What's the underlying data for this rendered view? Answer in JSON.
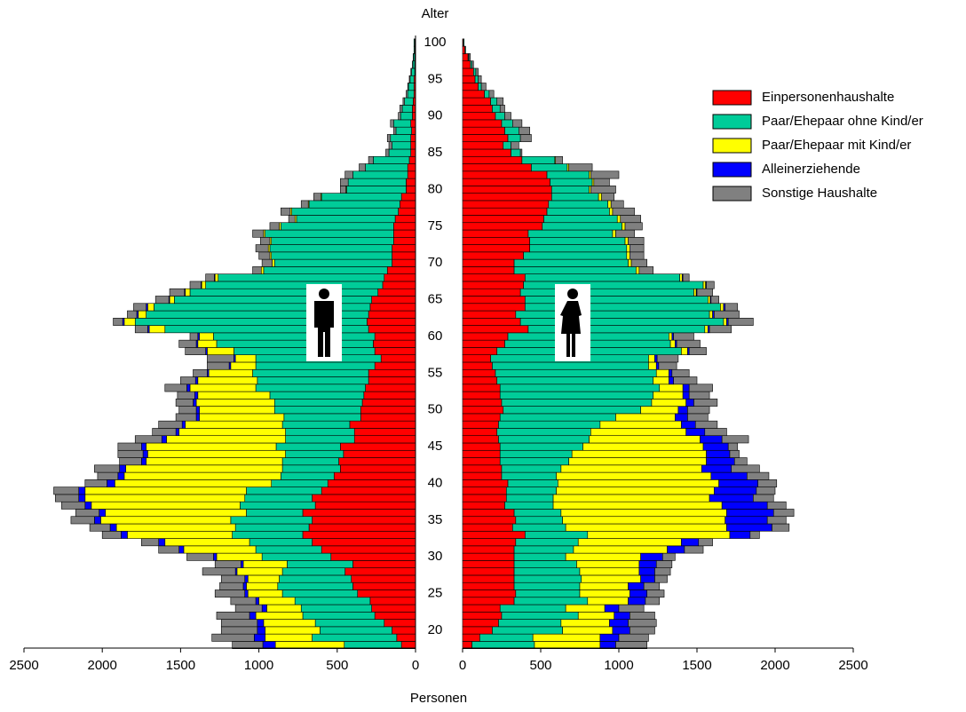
{
  "chart_data": {
    "type": "pyramid",
    "y_label": "Alter",
    "x_label": "Personen",
    "categories": [
      null,
      null,
      20,
      null,
      null,
      null,
      null,
      25,
      null,
      null,
      null,
      null,
      30,
      null,
      null,
      null,
      null,
      35,
      null,
      null,
      null,
      null,
      40,
      null,
      null,
      null,
      null,
      45,
      null,
      null,
      null,
      null,
      50,
      null,
      null,
      null,
      null,
      55,
      null,
      null,
      null,
      null,
      60,
      null,
      null,
      null,
      null,
      65,
      null,
      null,
      null,
      null,
      70,
      null,
      null,
      null,
      null,
      75,
      null,
      null,
      null,
      null,
      80,
      null,
      null,
      null,
      null,
      85,
      null,
      null,
      null,
      null,
      90,
      null,
      null,
      null,
      null,
      95,
      null,
      null,
      null,
      null,
      100
    ],
    "xlim": [
      0,
      2500
    ],
    "xticks": [
      0,
      500,
      1000,
      1500,
      2000,
      2500
    ],
    "series": [
      {
        "name": "Einpersonenhaushalte",
        "color": "#ff0000",
        "male": [
          90,
          120,
          150,
          200,
          260,
          280,
          290,
          370,
          400,
          410,
          450,
          400,
          540,
          600,
          660,
          720,
          680,
          660,
          720,
          640,
          660,
          600,
          560,
          520,
          480,
          490,
          460,
          480,
          390,
          390,
          420,
          350,
          350,
          340,
          330,
          320,
          300,
          300,
          260,
          220,
          260,
          270,
          260,
          300,
          310,
          300,
          290,
          280,
          240,
          210,
          200,
          180,
          150,
          150,
          150,
          140,
          140,
          140,
          130,
          110,
          100,
          90,
          60,
          60,
          50,
          50,
          40,
          30,
          30,
          30,
          25,
          30,
          20,
          20,
          15,
          10,
          10,
          10,
          5,
          5,
          5,
          5,
          5
        ],
        "female": [
          60,
          110,
          190,
          230,
          250,
          240,
          330,
          340,
          330,
          330,
          330,
          330,
          330,
          330,
          340,
          400,
          320,
          340,
          330,
          270,
          280,
          280,
          290,
          250,
          250,
          240,
          240,
          240,
          230,
          220,
          230,
          240,
          260,
          250,
          240,
          240,
          220,
          210,
          190,
          180,
          220,
          270,
          290,
          420,
          370,
          340,
          400,
          400,
          370,
          390,
          400,
          330,
          330,
          390,
          430,
          430,
          420,
          510,
          520,
          540,
          550,
          570,
          570,
          560,
          540,
          440,
          380,
          310,
          260,
          290,
          270,
          250,
          210,
          190,
          180,
          140,
          100,
          80,
          70,
          50,
          35,
          15,
          5
        ]
      },
      {
        "name": "Paar/Ehepaar ohne Kind/er",
        "color": "#00cc99",
        "male": [
          365,
          540,
          460,
          440,
          460,
          450,
          480,
          480,
          480,
          460,
          400,
          420,
          440,
          420,
          400,
          450,
          470,
          520,
          360,
          480,
          430,
          480,
          360,
          340,
          370,
          360,
          370,
          410,
          440,
          440,
          430,
          490,
          550,
          560,
          600,
          700,
          710,
          740,
          760,
          800,
          900,
          1000,
          1030,
          1300,
          1480,
          1420,
          1380,
          1260,
          1200,
          1130,
          1060,
          790,
          750,
          770,
          780,
          780,
          820,
          720,
          630,
          680,
          580,
          510,
          380,
          370,
          350,
          270,
          230,
          140,
          120,
          130,
          100,
          110,
          75,
          65,
          55,
          40,
          35,
          25,
          20,
          12,
          8,
          5,
          5
        ],
        "female": [
          400,
          340,
          450,
          400,
          490,
          420,
          470,
          410,
          420,
          430,
          420,
          400,
          330,
          380,
          400,
          400,
          340,
          300,
          300,
          310,
          300,
          320,
          320,
          350,
          380,
          440,
          460,
          530,
          580,
          600,
          650,
          740,
          880,
          960,
          980,
          1020,
          1000,
          1030,
          1000,
          1010,
          1180,
          1060,
          1030,
          1130,
          1300,
          1240,
          1250,
          1170,
          1110,
          1150,
          990,
          780,
          730,
          660,
          620,
          610,
          540,
          510,
          470,
          400,
          380,
          300,
          240,
          270,
          270,
          230,
          210,
          60,
          50,
          80,
          90,
          70,
          60,
          50,
          40,
          30,
          20,
          20,
          15,
          10,
          5,
          5,
          5
        ]
      },
      {
        "name": "Paar/Ehepaar mit Kind/er",
        "color": "#ffff00",
        "male": [
          440,
          300,
          350,
          330,
          300,
          220,
          230,
          220,
          200,
          200,
          290,
          280,
          290,
          460,
          540,
          670,
          760,
          830,
          900,
          950,
          1020,
          1030,
          1000,
          1000,
          1000,
          870,
          880,
          830,
          760,
          680,
          620,
          540,
          480,
          500,
          460,
          420,
          380,
          280,
          160,
          130,
          170,
          120,
          90,
          100,
          70,
          50,
          40,
          30,
          30,
          25,
          20,
          15,
          15,
          10,
          10,
          10,
          10,
          10,
          10,
          10,
          5,
          5,
          5,
          0,
          0,
          0,
          0,
          0,
          0,
          0,
          0,
          0,
          0,
          0,
          0,
          0,
          0,
          0,
          0,
          0,
          0,
          0,
          0
        ],
        "female": [
          420,
          430,
          320,
          310,
          230,
          250,
          260,
          320,
          310,
          380,
          380,
          400,
          480,
          600,
          660,
          910,
          1030,
          1040,
          1060,
          1080,
          1000,
          1010,
          1030,
          990,
          900,
          880,
          860,
          770,
          710,
          610,
          520,
          380,
          240,
          220,
          190,
          150,
          100,
          80,
          50,
          40,
          40,
          30,
          20,
          20,
          20,
          20,
          20,
          15,
          15,
          15,
          15,
          20,
          20,
          20,
          20,
          20,
          20,
          20,
          20,
          20,
          20,
          20,
          10,
          10,
          10,
          10,
          5,
          0,
          0,
          0,
          0,
          0,
          0,
          0,
          0,
          0,
          0,
          0,
          0,
          0,
          0,
          0,
          0
        ]
      },
      {
        "name": "Alleinerziehende",
        "color": "#0000ff",
        "male": [
          80,
          70,
          50,
          40,
          40,
          30,
          20,
          20,
          20,
          20,
          10,
          15,
          20,
          30,
          40,
          40,
          40,
          40,
          40,
          40,
          40,
          40,
          50,
          40,
          40,
          30,
          30,
          30,
          30,
          20,
          20,
          20,
          20,
          20,
          20,
          20,
          15,
          10,
          10,
          10,
          10,
          10,
          10,
          10,
          10,
          10,
          10,
          5,
          5,
          5,
          5,
          0,
          0,
          0,
          0,
          0,
          0,
          0,
          0,
          0,
          0,
          0,
          0,
          0,
          0,
          0,
          0,
          0,
          0,
          0,
          0,
          0,
          0,
          0,
          0,
          0,
          0,
          0,
          0,
          0,
          0,
          0,
          0
        ],
        "female": [
          100,
          120,
          110,
          120,
          100,
          90,
          110,
          110,
          100,
          90,
          100,
          110,
          140,
          110,
          110,
          130,
          290,
          270,
          300,
          290,
          280,
          270,
          250,
          230,
          190,
          180,
          150,
          160,
          140,
          120,
          90,
          80,
          60,
          50,
          40,
          40,
          30,
          20,
          15,
          15,
          10,
          10,
          10,
          10,
          10,
          10,
          10,
          5,
          5,
          5,
          5,
          0,
          0,
          0,
          0,
          0,
          0,
          0,
          0,
          0,
          0,
          0,
          0,
          0,
          0,
          0,
          0,
          0,
          0,
          0,
          0,
          0,
          0,
          0,
          0,
          0,
          0,
          0,
          0,
          0,
          0,
          0,
          0
        ]
      },
      {
        "name": "Sonstige Haushalte",
        "color": "#808080",
        "male": [
          195,
          270,
          230,
          230,
          210,
          170,
          160,
          190,
          150,
          150,
          210,
          165,
          170,
          130,
          110,
          120,
          130,
          150,
          150,
          150,
          150,
          160,
          140,
          130,
          160,
          140,
          160,
          150,
          170,
          150,
          150,
          130,
          110,
          110,
          110,
          140,
          95,
          90,
          140,
          170,
          130,
          110,
          50,
          80,
          60,
          60,
          80,
          85,
          95,
          70,
          55,
          55,
          65,
          70,
          80,
          60,
          70,
          60,
          40,
          60,
          45,
          45,
          35,
          50,
          50,
          40,
          30,
          20,
          20,
          20,
          15,
          20,
          15,
          15,
          10,
          10,
          5,
          5,
          5,
          3,
          2,
          0,
          0
        ],
        "female": [
          200,
          190,
          160,
          180,
          160,
          160,
          90,
          110,
          100,
          80,
          100,
          100,
          80,
          120,
          90,
          60,
          110,
          120,
          130,
          120,
          130,
          120,
          120,
          140,
          180,
          80,
          60,
          60,
          170,
          140,
          140,
          130,
          140,
          150,
          130,
          150,
          150,
          110,
          115,
          135,
          110,
          150,
          130,
          140,
          160,
          160,
          80,
          50,
          100,
          50,
          40,
          90,
          100,
          90,
          90,
          100,
          120,
          110,
          130,
          140,
          80,
          80,
          160,
          100,
          180,
          150,
          45,
          10,
          50,
          70,
          70,
          60,
          40,
          30,
          40,
          30,
          30,
          20,
          15,
          10,
          10,
          0,
          0
        ]
      }
    ]
  }
}
